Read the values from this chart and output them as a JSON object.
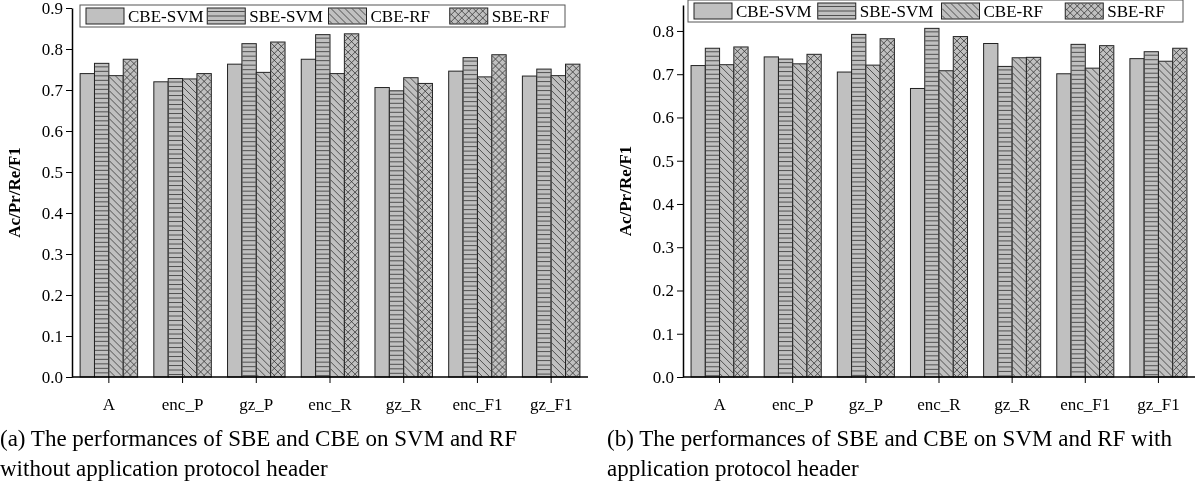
{
  "chart_data": [
    {
      "type": "bar",
      "ylabel": "Ac/Pr/Re/F1",
      "categories": [
        "A",
        "enc_P",
        "gz_P",
        "enc_R",
        "gz_R",
        "enc_F1",
        "gz_F1"
      ],
      "series": [
        {
          "name": "CBE-SVM",
          "color": "#c0c0c0",
          "values": [
            0.74,
            0.72,
            0.763,
            0.775,
            0.706,
            0.746,
            0.734
          ]
        },
        {
          "name": "SBE-SVM",
          "color": "#c0c0c0",
          "values": [
            0.765,
            0.728,
            0.813,
            0.835,
            0.698,
            0.779,
            0.751
          ]
        },
        {
          "name": "CBE-RF",
          "color": "#c0c0c0",
          "values": [
            0.735,
            0.727,
            0.743,
            0.74,
            0.73,
            0.732,
            0.735
          ]
        },
        {
          "name": "SBE-RF",
          "color": "#c0c0c0",
          "values": [
            0.775,
            0.74,
            0.817,
            0.837,
            0.716,
            0.786,
            0.763
          ]
        }
      ],
      "ylim": [
        0,
        0.9
      ],
      "yticks": [
        {
          "value": 0,
          "label": "0.0"
        },
        0.1,
        0.2,
        0.3,
        0.4,
        0.5,
        0.6,
        0.7,
        0.8,
        0.9
      ],
      "legend": "top",
      "grid": false,
      "annotations": [
        "(a) The performances of SBE and CBE on SVM and RF without application protocol header"
      ]
    },
    {
      "type": "bar",
      "ylabel": "Ac/Pr/Re/F1",
      "categories": [
        "A",
        "enc_P",
        "gz_P",
        "enc_R",
        "gz_R",
        "enc_F1",
        "gz_F1"
      ],
      "series": [
        {
          "name": "CBE-SVM",
          "color": "#c0c0c0",
          "values": [
            0.72,
            0.74,
            0.705,
            0.667,
            0.771,
            0.701,
            0.736
          ]
        },
        {
          "name": "SBE-SVM",
          "color": "#c0c0c0",
          "values": [
            0.76,
            0.735,
            0.792,
            0.806,
            0.718,
            0.769,
            0.752
          ]
        },
        {
          "name": "CBE-RF",
          "color": "#c0c0c0",
          "values": [
            0.722,
            0.724,
            0.721,
            0.708,
            0.738,
            0.714,
            0.73
          ]
        },
        {
          "name": "SBE-RF",
          "color": "#c0c0c0",
          "values": [
            0.763,
            0.746,
            0.782,
            0.787,
            0.739,
            0.766,
            0.76
          ]
        }
      ],
      "ylim": [
        0,
        0.86
      ],
      "yticks": [
        {
          "value": 0,
          "label": "0.0"
        },
        0.1,
        0.2,
        0.3,
        0.4,
        0.5,
        0.6,
        0.7,
        0.8
      ],
      "legend": "top",
      "grid": false,
      "annotations": [
        "(b) The performances of SBE and CBE on SVM and RF with application protocol header"
      ]
    }
  ]
}
